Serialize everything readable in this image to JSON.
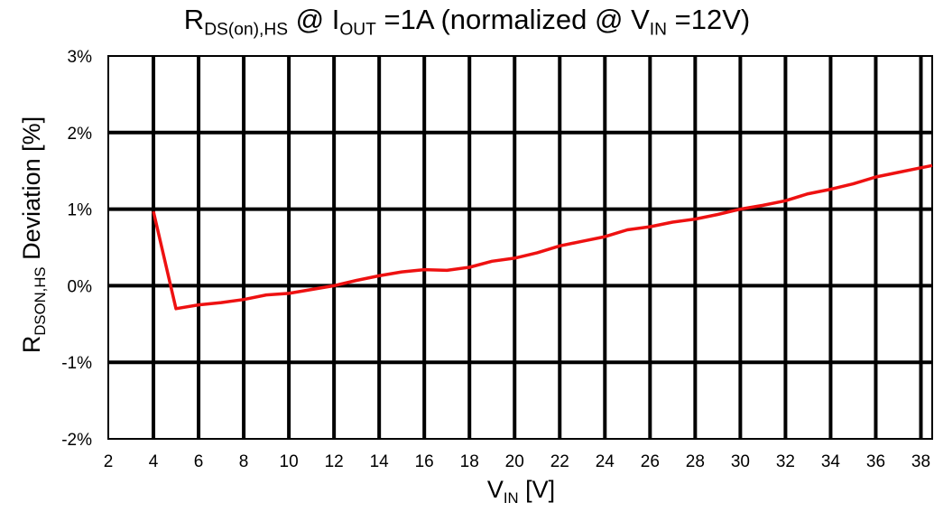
{
  "chart_data": {
    "type": "line",
    "title": {
      "r_main": "R",
      "r_sub": "DS(on),HS",
      "at1": " @ ",
      "i_main": "I",
      "i_sub": "OUT",
      "mid": " =1A (normalized @ ",
      "v_main": "V",
      "v_sub": "IN",
      "end": " =12V)"
    },
    "xlabel": {
      "main": "V",
      "sub": "IN",
      "rest": " [V]"
    },
    "ylabel": {
      "main": "R",
      "sub": "DSON,HS",
      "rest": "   Deviation [%]"
    },
    "xlim": [
      2,
      38.5
    ],
    "ylim": [
      -2,
      3
    ],
    "x_ticks": [
      2,
      4,
      6,
      8,
      10,
      12,
      14,
      16,
      18,
      20,
      22,
      24,
      26,
      28,
      30,
      32,
      34,
      36,
      38
    ],
    "x_tick_labels": [
      "2",
      "4",
      "6",
      "8",
      "10",
      "12",
      "14",
      "16",
      "18",
      "20",
      "22",
      "24",
      "26",
      "28",
      "30",
      "32",
      "34",
      "36",
      "38"
    ],
    "y_ticks": [
      -2,
      -1,
      0,
      1,
      2,
      3
    ],
    "y_tick_labels": [
      "-2%",
      "-1%",
      "0%",
      "1%",
      "2%",
      "3%"
    ],
    "grid": true,
    "series": [
      {
        "color": "#ee1111",
        "x": [
          4,
          5,
          6,
          7,
          8,
          9,
          10,
          11,
          12,
          13,
          14,
          15,
          16,
          17,
          18,
          19,
          20,
          21,
          22,
          23,
          24,
          25,
          26,
          27,
          28,
          29,
          30,
          31,
          32,
          33,
          34,
          35,
          36,
          37,
          38,
          38.5
        ],
        "y": [
          0.97,
          -0.3,
          -0.25,
          -0.22,
          -0.18,
          -0.12,
          -0.1,
          -0.05,
          0.0,
          0.07,
          0.13,
          0.18,
          0.21,
          0.2,
          0.24,
          0.32,
          0.36,
          0.43,
          0.52,
          0.58,
          0.64,
          0.73,
          0.77,
          0.83,
          0.87,
          0.93,
          1.0,
          1.05,
          1.11,
          1.2,
          1.26,
          1.33,
          1.42,
          1.48,
          1.54,
          1.57
        ]
      }
    ]
  }
}
